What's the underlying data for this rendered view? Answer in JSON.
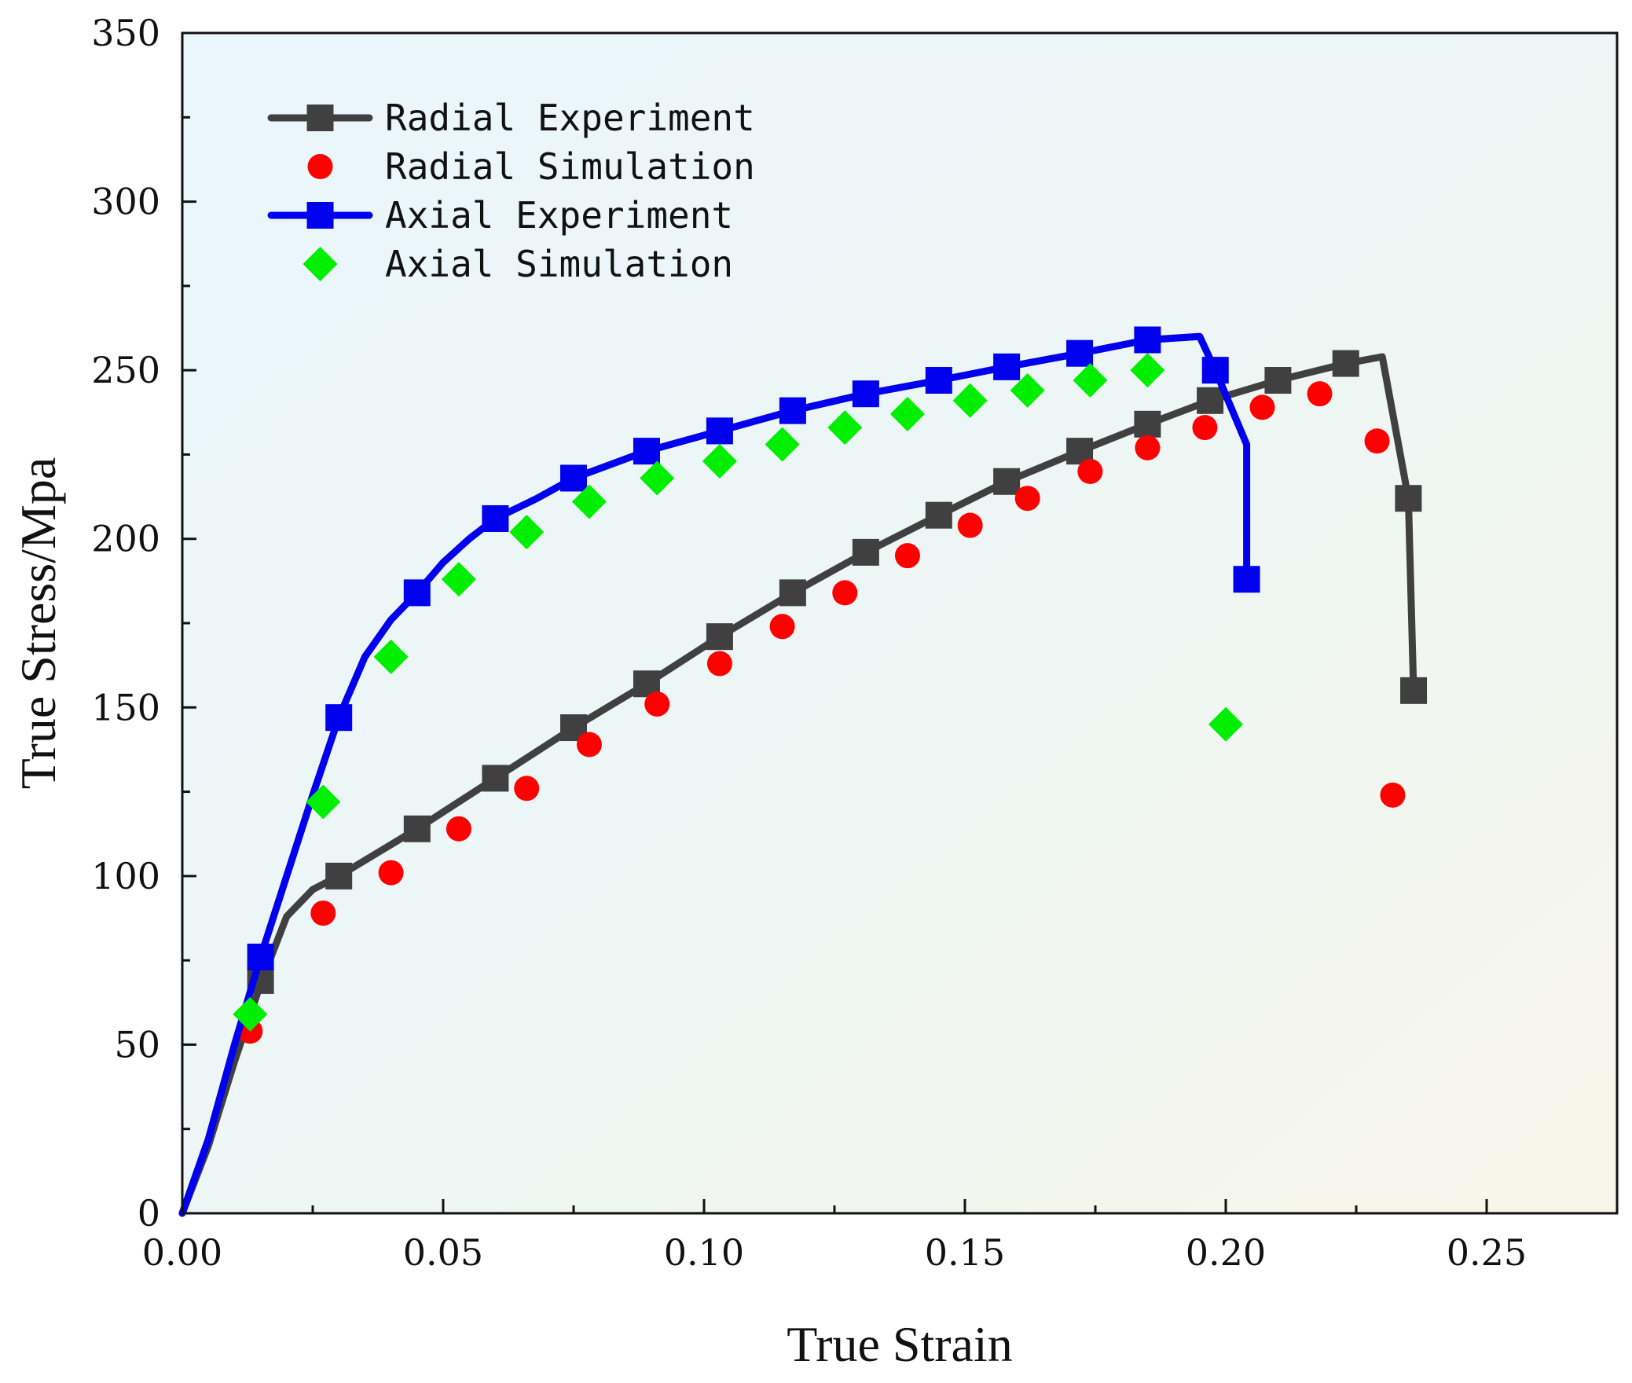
{
  "chart_data": {
    "type": "line",
    "title": "",
    "xlabel": "True Strain",
    "ylabel": "True Stress/Mpa",
    "xlim": [
      0,
      0.275
    ],
    "ylim": [
      0,
      350
    ],
    "xticks": [
      "0.00",
      "0.05",
      "0.10",
      "0.15",
      "0.20",
      "0.25"
    ],
    "xtick_values": [
      0,
      0.05,
      0.1,
      0.15,
      0.2,
      0.25
    ],
    "yticks": [
      "0",
      "50",
      "100",
      "150",
      "200",
      "250",
      "300",
      "350"
    ],
    "ytick_values": [
      0,
      50,
      100,
      150,
      200,
      250,
      300,
      350
    ],
    "legend_position": "top-left",
    "series": [
      {
        "name": "Radial Experiment",
        "style": "line-square",
        "color": "#404040",
        "x": [
          0,
          0.005,
          0.01,
          0.015,
          0.02,
          0.025,
          0.03,
          0.045,
          0.06,
          0.075,
          0.089,
          0.103,
          0.117,
          0.131,
          0.145,
          0.158,
          0.172,
          0.185,
          0.197,
          0.21,
          0.223,
          0.23,
          0.235,
          0.236,
          0.236
        ],
        "y": [
          0,
          20,
          45,
          68,
          88,
          96,
          100,
          114,
          129,
          144,
          157,
          171,
          184,
          196,
          207,
          217,
          226,
          234,
          241,
          247,
          252,
          254,
          212,
          155,
          155
        ],
        "markers_x": [
          0.015,
          0.03,
          0.045,
          0.06,
          0.075,
          0.089,
          0.103,
          0.117,
          0.131,
          0.145,
          0.158,
          0.172,
          0.185,
          0.197,
          0.21,
          0.223,
          0.235,
          0.236
        ],
        "markers_y": [
          69,
          100,
          114,
          129,
          144,
          157,
          171,
          184,
          196,
          207,
          217,
          226,
          234,
          241,
          247,
          252,
          212,
          155
        ]
      },
      {
        "name": "Radial Simulation",
        "style": "circle",
        "color": "#ff0000",
        "x": [
          0.013,
          0.027,
          0.04,
          0.053,
          0.066,
          0.078,
          0.091,
          0.103,
          0.115,
          0.127,
          0.139,
          0.151,
          0.162,
          0.174,
          0.185,
          0.196,
          0.207,
          0.218,
          0.229,
          0.232
        ],
        "y": [
          54,
          89,
          101,
          114,
          126,
          139,
          151,
          163,
          174,
          184,
          195,
          204,
          212,
          220,
          227,
          233,
          239,
          243,
          229,
          124
        ]
      },
      {
        "name": "Axial Experiment",
        "style": "line-square",
        "color": "#0000ee",
        "x": [
          0,
          0.005,
          0.01,
          0.015,
          0.02,
          0.025,
          0.03,
          0.035,
          0.04,
          0.045,
          0.05,
          0.055,
          0.06,
          0.068,
          0.075,
          0.089,
          0.103,
          0.117,
          0.131,
          0.145,
          0.158,
          0.172,
          0.185,
          0.195,
          0.198,
          0.204,
          0.204
        ],
        "y": [
          0,
          22,
          50,
          76,
          100,
          124,
          147,
          165,
          176,
          184,
          193,
          200,
          206,
          212,
          218,
          226,
          232,
          238,
          243,
          247,
          251,
          255,
          259,
          260,
          250,
          228,
          188
        ],
        "markers_x": [
          0.015,
          0.03,
          0.045,
          0.06,
          0.075,
          0.089,
          0.103,
          0.117,
          0.131,
          0.145,
          0.158,
          0.172,
          0.185,
          0.198,
          0.204
        ],
        "markers_y": [
          76,
          147,
          184,
          206,
          218,
          226,
          232,
          238,
          243,
          247,
          251,
          255,
          259,
          250,
          188
        ]
      },
      {
        "name": "Axial Simulation",
        "style": "diamond",
        "color": "#00ee00",
        "x": [
          0.013,
          0.027,
          0.04,
          0.053,
          0.066,
          0.078,
          0.091,
          0.103,
          0.115,
          0.127,
          0.139,
          0.151,
          0.162,
          0.174,
          0.185,
          0.2
        ],
        "y": [
          59,
          122,
          165,
          188,
          202,
          211,
          218,
          223,
          228,
          233,
          237,
          241,
          244,
          247,
          250,
          145
        ]
      }
    ]
  }
}
